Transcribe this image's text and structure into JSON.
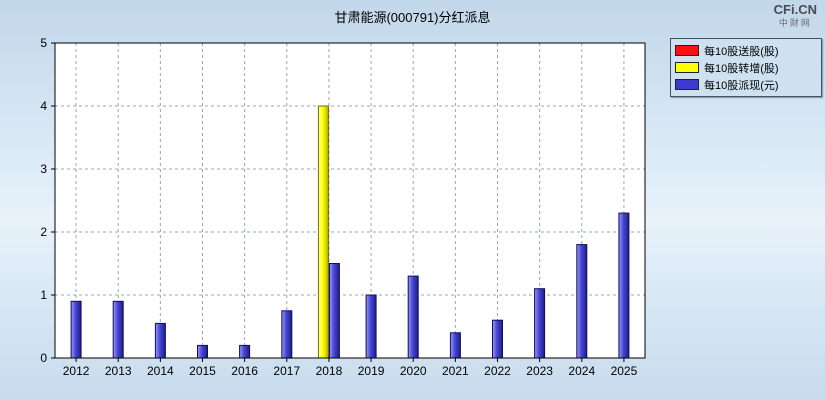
{
  "header": {
    "title": "甘肃能源(000791)分红派息",
    "logo_line1": "CFi.CN",
    "logo_line2": "中财网"
  },
  "legend": {
    "items": [
      {
        "label": "每10股送股(股)",
        "color": "#ff1010"
      },
      {
        "label": "每10股转增(股)",
        "color": "#ffff00"
      },
      {
        "label": "每10股派现(元)",
        "color": "#3b3bd0"
      }
    ]
  },
  "chart_data": {
    "type": "bar",
    "title": "甘肃能源(000791)分红派息",
    "categories": [
      "2012",
      "2013",
      "2014",
      "2015",
      "2016",
      "2017",
      "2018",
      "2019",
      "2020",
      "2021",
      "2022",
      "2023",
      "2024",
      "2025"
    ],
    "series": [
      {
        "name": "每10股送股(股)",
        "color": "#ff1010",
        "values": [
          0,
          0,
          0,
          0,
          0,
          0,
          0,
          0,
          0,
          0,
          0,
          0,
          0,
          0
        ]
      },
      {
        "name": "每10股转增(股)",
        "color": "#ffff00",
        "values": [
          0,
          0,
          0,
          0,
          0,
          0,
          4.0,
          0,
          0,
          0,
          0,
          0,
          0,
          0
        ]
      },
      {
        "name": "每10股派现(元)",
        "color": "#3b3bd0",
        "values": [
          0.9,
          0.9,
          0.55,
          0.2,
          0.2,
          0.75,
          1.5,
          1.0,
          1.3,
          0.4,
          0.6,
          1.1,
          1.8,
          2.3
        ]
      }
    ],
    "xlabel": "",
    "ylabel": "",
    "ylim": [
      0,
      5
    ],
    "yticks": [
      0,
      1,
      2,
      3,
      4,
      5
    ],
    "grid": "dashed",
    "legend_position": "top-right"
  }
}
